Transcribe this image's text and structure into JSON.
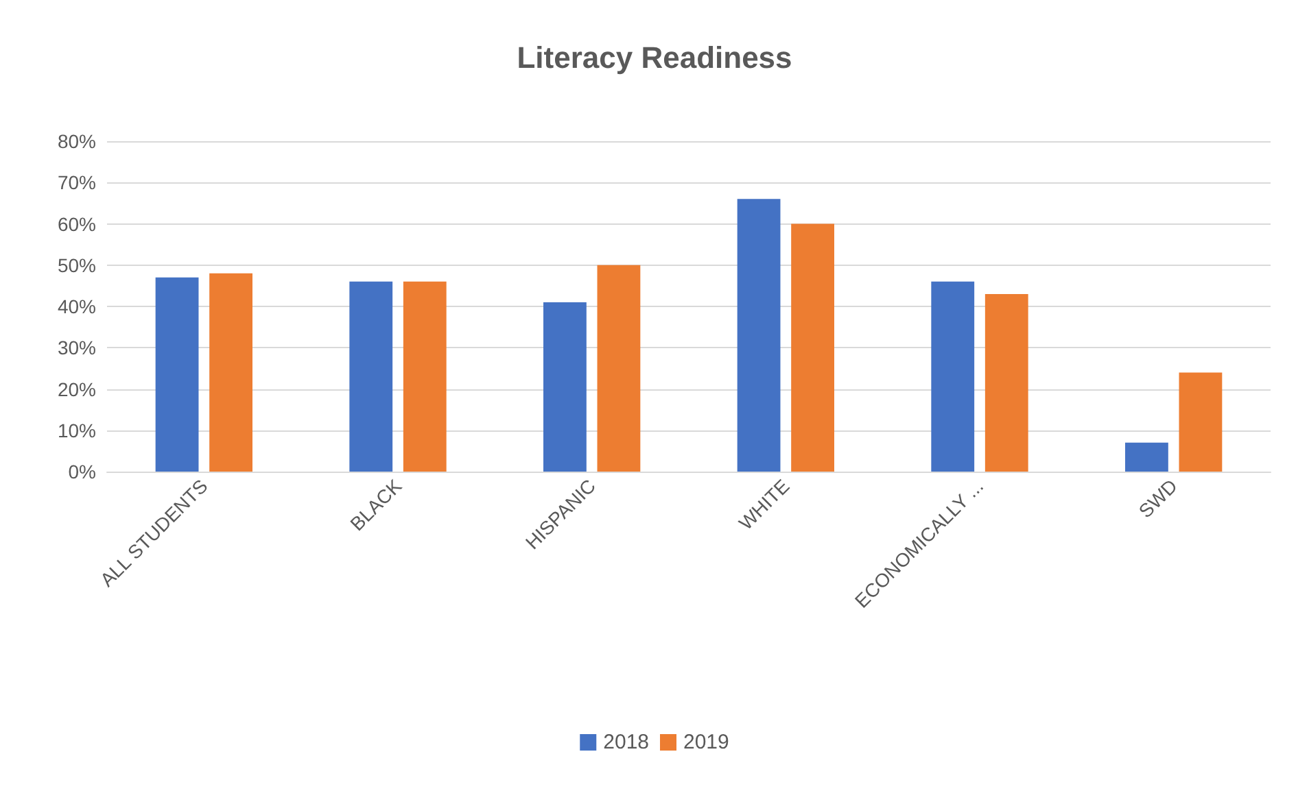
{
  "chart_data": {
    "type": "bar",
    "title": "Literacy Readiness",
    "categories": [
      "ALL STUDENTS",
      "BLACK",
      "HISPANIC",
      "WHITE",
      "ECONOMICALLY ...",
      "SWD"
    ],
    "series": [
      {
        "name": "2018",
        "color": "#4472c4",
        "values": [
          47,
          46,
          41,
          66,
          46,
          7
        ]
      },
      {
        "name": "2019",
        "color": "#ed7d31",
        "values": [
          48,
          46,
          50,
          60,
          43,
          24
        ]
      }
    ],
    "ylim": [
      0,
      80
    ],
    "yticks": [
      {
        "value": 0,
        "label": "0%"
      },
      {
        "value": 10,
        "label": "10%"
      },
      {
        "value": 20,
        "label": "20%"
      },
      {
        "value": 30,
        "label": "30%"
      },
      {
        "value": 40,
        "label": "40%"
      },
      {
        "value": 50,
        "label": "50%"
      },
      {
        "value": 60,
        "label": "60%"
      },
      {
        "value": 70,
        "label": "70%"
      },
      {
        "value": 80,
        "label": "80%"
      }
    ],
    "grid": "y",
    "legend": "bottom"
  }
}
